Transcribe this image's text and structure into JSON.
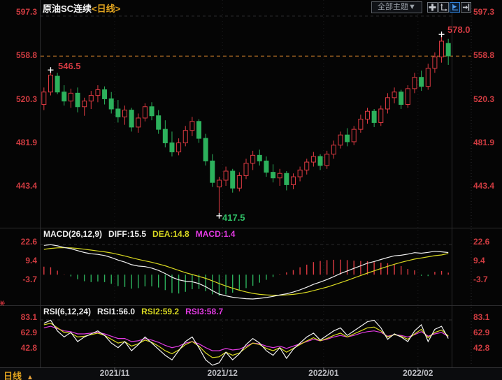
{
  "header": {
    "title": "原油SC连续",
    "period_tag": "<日线>",
    "toolbar": {
      "theme_dropdown": "全部主题▼",
      "icons": [
        "move-crosshair-icon",
        "axis-scale-icon",
        "axis-scale-active-icon",
        "axis-pan-icon"
      ]
    }
  },
  "colors": {
    "up": "#dd3a42",
    "down": "#2cb15c",
    "axis_label": "#cd3b40",
    "ref_line": "#e08a2e",
    "diff_line": "#f0f0f0",
    "dea_line": "#d9d921",
    "macd_line": "#e23ae2",
    "date_label": "#bcbdc2",
    "accent_blue": "#2f80d8",
    "title_tag": "#e2a41f"
  },
  "main_panel": {
    "y_axis_labels": [
      "597.3",
      "558.8",
      "520.3",
      "481.9",
      "443.4"
    ],
    "annotations": {
      "high_early": "546.5",
      "high_late": "578.0",
      "low": "417.5",
      "current_price": "558.8"
    }
  },
  "macd_panel": {
    "header": {
      "name": "MACD(26,12,9)",
      "diff": "DIFF:15.5",
      "dea": "DEA:14.8",
      "macd": "MACD:1.4"
    },
    "y_axis_labels": [
      "22.6",
      "9.4",
      "-3.7"
    ]
  },
  "rsi_panel": {
    "header": {
      "name": "RSI(6,12,24)",
      "rsi1": "RSI1:56.0",
      "rsi2": "RSI2:59.2",
      "rsi3": "RSI3:58.7"
    },
    "y_axis_labels": [
      "83.1",
      "62.9",
      "42.8"
    ]
  },
  "bottom_bar": {
    "period_label": "日线",
    "up_arrow": "▲",
    "x_axis_labels": [
      "2021/11",
      "2021/12",
      "2022/01",
      "2022/02"
    ]
  },
  "chart_data": {
    "type": "candlestick",
    "symbol": "原油SC连续",
    "period": "日线",
    "legend_position": "top-left",
    "x_month_labels": [
      "2021/11",
      "2021/12",
      "2022/01",
      "2022/02"
    ],
    "month_tick_indices": [
      11,
      27,
      42,
      56
    ],
    "main": {
      "y_ticks": [
        597.3,
        558.8,
        520.3,
        481.9,
        443.4
      ],
      "ref_line": 558.8,
      "marked_points": [
        {
          "index": 1,
          "price": 546.5,
          "type": "high"
        },
        {
          "index": 26,
          "price": 417.5,
          "type": "low"
        },
        {
          "index": 59,
          "price": 578.0,
          "type": "high"
        }
      ],
      "open": [
        516,
        527,
        541,
        527,
        519,
        526,
        514,
        519,
        524,
        529,
        521,
        512,
        505,
        511,
        496,
        504,
        514,
        506,
        494,
        482,
        474,
        482,
        493,
        501,
        486,
        466,
        443,
        449,
        457,
        442,
        453,
        464,
        471,
        466,
        456,
        451,
        455,
        445,
        452,
        458,
        465,
        470,
        462,
        472,
        480,
        489,
        483,
        494,
        503,
        510,
        500,
        512,
        522,
        527,
        516,
        530,
        540,
        532,
        548,
        558,
        570
      ],
      "high": [
        531,
        546.5,
        544,
        533,
        530,
        531,
        522,
        528,
        533,
        532,
        527,
        520,
        515,
        513,
        508,
        517,
        518,
        511,
        502,
        492,
        486,
        497,
        505,
        503,
        490,
        472,
        452,
        461,
        459,
        456,
        468,
        475,
        476,
        470,
        463,
        459,
        457,
        455,
        461,
        468,
        474,
        472,
        475,
        484,
        492,
        495,
        497,
        507,
        513,
        512,
        515,
        526,
        531,
        529,
        533,
        544,
        546,
        552,
        562,
        578,
        574
      ],
      "low": [
        511,
        524,
        525,
        515,
        513,
        509,
        506,
        512,
        518,
        516,
        508,
        500,
        498,
        492,
        491,
        501,
        502,
        490,
        478,
        470,
        471,
        479,
        488,
        482,
        462,
        443,
        417.5,
        444,
        438,
        439,
        450,
        458,
        462,
        452,
        447,
        444,
        440,
        441,
        448,
        454,
        461,
        458,
        459,
        468,
        477,
        479,
        480,
        491,
        499,
        496,
        497,
        508,
        517,
        512,
        513,
        526,
        528,
        529,
        544,
        553,
        551
      ],
      "close": [
        527,
        542,
        527,
        519,
        526,
        514,
        519,
        524,
        529,
        521,
        512,
        505,
        511,
        496,
        504,
        514,
        506,
        494,
        482,
        474,
        482,
        493,
        501,
        486,
        466,
        447,
        449,
        457,
        442,
        453,
        464,
        471,
        466,
        456,
        451,
        455,
        445,
        452,
        458,
        465,
        470,
        462,
        472,
        480,
        489,
        483,
        494,
        503,
        510,
        500,
        512,
        522,
        527,
        516,
        530,
        540,
        532,
        548,
        558,
        572,
        559
      ]
    },
    "macd": {
      "params": [
        26,
        12,
        9
      ],
      "last_values": {
        "diff": 15.5,
        "dea": 14.8,
        "macd": 1.4
      },
      "y_ticks": [
        22.6,
        9.4,
        -3.7
      ],
      "diff": [
        20.5,
        21.0,
        20.2,
        19.0,
        18.2,
        16.8,
        15.5,
        14.6,
        14.2,
        13.4,
        12.0,
        10.2,
        8.8,
        7.0,
        6.0,
        5.6,
        4.6,
        3.0,
        0.8,
        -1.8,
        -3.6,
        -4.6,
        -5.0,
        -6.2,
        -8.4,
        -11.2,
        -13.6,
        -14.8,
        -15.8,
        -16.4,
        -16.8,
        -17.0,
        -16.6,
        -16.0,
        -15.2,
        -14.2,
        -13.4,
        -12.2,
        -10.6,
        -8.8,
        -6.8,
        -5.2,
        -3.4,
        -1.4,
        0.8,
        2.6,
        4.4,
        6.2,
        8.0,
        9.2,
        10.6,
        12.0,
        13.2,
        13.6,
        14.4,
        15.4,
        15.0,
        15.6,
        16.4,
        16.0,
        15.5
      ],
      "dea": [
        17.7,
        18.4,
        18.8,
        18.9,
        18.8,
        18.4,
        17.8,
        17.2,
        16.6,
        16.0,
        15.2,
        14.2,
        13.1,
        11.9,
        10.7,
        9.7,
        8.7,
        7.5,
        6.2,
        4.6,
        3.0,
        1.4,
        0.1,
        -1.2,
        -2.6,
        -4.3,
        -6.2,
        -7.9,
        -9.5,
        -10.9,
        -12.1,
        -13.1,
        -13.8,
        -14.2,
        -14.4,
        -14.4,
        -14.2,
        -13.8,
        -13.2,
        -12.3,
        -11.2,
        -10.0,
        -8.7,
        -7.2,
        -5.6,
        -4.0,
        -2.3,
        -0.6,
        1.1,
        2.7,
        4.3,
        5.8,
        7.3,
        8.6,
        9.8,
        10.9,
        11.7,
        12.5,
        13.3,
        13.8,
        14.8
      ],
      "hist": [
        5.6,
        5.2,
        2.8,
        0.2,
        -1.2,
        -3.2,
        -4.6,
        -5.2,
        -4.8,
        -5.2,
        -6.4,
        -8.0,
        -8.6,
        -9.8,
        -9.4,
        -8.2,
        -8.2,
        -9.0,
        -10.8,
        -12.8,
        -13.2,
        -12.0,
        -10.2,
        -10.0,
        -11.6,
        -13.8,
        -14.8,
        -13.8,
        -12.6,
        -11.0,
        -9.4,
        -7.8,
        -5.6,
        -3.6,
        -1.6,
        0.4,
        1.6,
        3.2,
        5.2,
        7.0,
        8.8,
        9.6,
        10.2,
        10.4,
        10.5,
        10.2,
        9.8,
        9.6,
        9.4,
        8.8,
        8.4,
        8.0,
        7.0,
        6.0,
        4.0,
        3.0,
        -0.8,
        -1.0,
        2.0,
        2.6,
        1.4
      ]
    },
    "rsi": {
      "params": [
        6,
        12,
        24
      ],
      "last_values": {
        "rsi1": 56.0,
        "rsi2": 59.2,
        "rsi3": 58.7
      },
      "y_ticks": [
        83.1,
        62.9,
        42.8
      ],
      "rsi1": [
        76,
        80,
        66,
        58,
        64,
        52,
        58,
        62,
        66,
        60,
        50,
        44,
        52,
        40,
        48,
        58,
        50,
        42,
        34,
        28,
        40,
        52,
        58,
        44,
        28,
        21,
        24,
        38,
        28,
        36,
        48,
        56,
        50,
        40,
        34,
        44,
        30,
        42,
        50,
        58,
        63,
        54,
        60,
        66,
        70,
        60,
        66,
        72,
        78,
        80,
        70,
        55,
        62,
        58,
        52,
        66,
        74,
        52,
        68,
        72,
        56
      ],
      "rsi2": [
        74,
        76,
        70,
        64,
        63,
        58,
        59,
        61,
        63,
        60,
        55,
        50,
        52,
        46,
        49,
        54,
        51,
        46,
        40,
        36,
        41,
        48,
        52,
        46,
        37,
        31,
        32,
        38,
        34,
        37,
        44,
        50,
        48,
        43,
        40,
        44,
        38,
        43,
        48,
        53,
        57,
        53,
        56,
        60,
        63,
        58,
        62,
        66,
        70,
        71,
        66,
        58,
        61,
        59,
        55,
        62,
        68,
        57,
        64,
        67,
        59.2
      ],
      "rsi3": [
        70,
        72,
        69,
        66,
        65,
        62,
        62,
        63,
        64,
        62,
        59,
        56,
        56,
        52,
        53,
        56,
        54,
        51,
        47,
        44,
        46,
        50,
        52,
        49,
        44,
        40,
        40,
        43,
        41,
        42,
        46,
        50,
        49,
        46,
        44,
        46,
        43,
        46,
        49,
        52,
        55,
        53,
        55,
        58,
        60,
        58,
        60,
        63,
        65,
        66,
        64,
        59,
        61,
        60,
        58,
        61,
        65,
        59,
        62,
        64,
        58.7
      ]
    }
  }
}
